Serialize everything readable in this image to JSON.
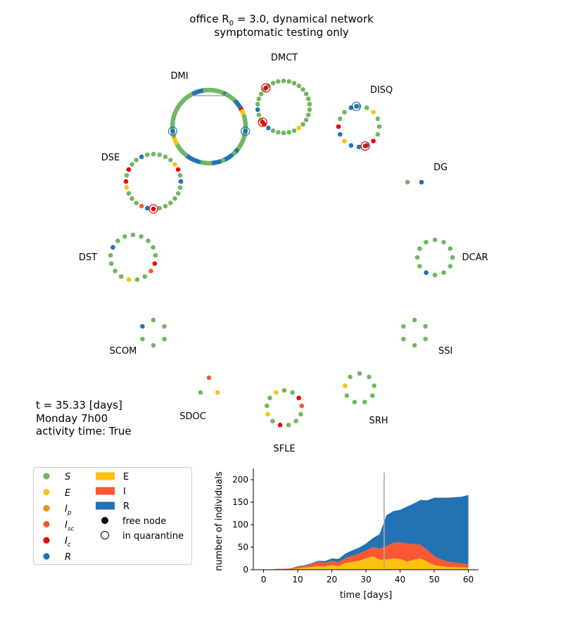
{
  "title": {
    "line1": "office R0 = 3.0, dynamical network",
    "line2": "symptomatic testing only",
    "r0_label": "office R",
    "r0_sub": "0",
    "r0_rest": " = 3.0, dynamical network"
  },
  "status": {
    "time_text": "t = 35.33 [days]",
    "day_text": "Monday 7h00",
    "activity_text": "activity time: True"
  },
  "colors": {
    "S": "#71b662",
    "E": "#fcc00f",
    "Ip": "#f18d12",
    "Isc": "#fb5733",
    "Ic": "#ea0707",
    "R": "#2272b4",
    "grid": "#aaaaaa"
  },
  "network": {
    "groups": [
      {
        "name": "DMI",
        "states": "SSSSSSSSSRSSSSSSRRRRRIEEESSSSSSSSSSSSSSSSSSSRRSSRRRRRSSRRRRRSSSSSSRRRRRRRRSSSSSSSSEEEESSSSSSSSSSSSSSSSSSSSSSSSSSSRRRRRRSS",
        "quarantine": [
          {
            "state": "R",
            "frac": 0.27
          },
          {
            "state": "R",
            "frac": 0.73
          }
        ]
      },
      {
        "name": "DMCT",
        "states": "SSSSSSSSSSSSESSSSSRIcSScRSSSSSSS",
        "quarantine": [
          {
            "state": "Ic",
            "frac": 0.65
          },
          {
            "state": "Ic",
            "frac": 0.88
          }
        ]
      },
      {
        "name": "DISQ",
        "states": "SSESSSIcRRRERISSR",
        "quarantine": [
          {
            "state": "R",
            "frac": 0.98
          },
          {
            "state": "Ic",
            "frac": 0.45
          }
        ]
      },
      {
        "name": "DSE",
        "states": "SSSSEIcScRSSSSSSSRIscSSSEIcSISSRS",
        "quarantine": [
          {
            "state": "Ic",
            "frac": 0.5
          }
        ]
      },
      {
        "name": "DG",
        "states": "SR",
        "quarantine": []
      },
      {
        "name": "DST",
        "states": "SSSSSIcIscSSESSSSRSS",
        "quarantine": []
      },
      {
        "name": "DCAR",
        "states": "SSSSSSSRSSSS",
        "quarantine": []
      },
      {
        "name": "SCOM",
        "states": "SSSSSR",
        "quarantine": []
      },
      {
        "name": "SSI",
        "states": "SSSSSS",
        "quarantine": []
      },
      {
        "name": "SDOC",
        "states": "IscES",
        "quarantine": []
      },
      {
        "name": "SFLE",
        "states": "SSIcIscSSSIcSESSE",
        "quarantine": []
      },
      {
        "name": "SRH",
        "states": "SSSSSSSES",
        "quarantine": []
      }
    ]
  },
  "legend": {
    "states": [
      {
        "key": "S",
        "label": "S",
        "sub": ""
      },
      {
        "key": "E",
        "label": "E",
        "sub": ""
      },
      {
        "key": "Ip",
        "label": "I",
        "sub": "p"
      },
      {
        "key": "Isc",
        "label": "I",
        "sub": "sc"
      },
      {
        "key": "Ic",
        "label": "I",
        "sub": "c"
      },
      {
        "key": "R",
        "label": "R",
        "sub": ""
      }
    ],
    "areas": [
      {
        "key": "E",
        "label": "E"
      },
      {
        "key": "Isc",
        "label": "I"
      },
      {
        "key": "R",
        "label": "R"
      }
    ],
    "markers": [
      {
        "kind": "filled",
        "label": "free node"
      },
      {
        "kind": "open",
        "label": "in quarantine"
      }
    ]
  },
  "chart_data": {
    "type": "area",
    "stacked": true,
    "xlabel": "time [days]",
    "ylabel": "number of individuals",
    "xlim": [
      -3,
      63
    ],
    "ylim": [
      0,
      225
    ],
    "xticks": [
      0,
      10,
      20,
      30,
      40,
      50,
      60
    ],
    "yticks": [
      0,
      50,
      100,
      150,
      200
    ],
    "current_time_marker": 35.33,
    "x": [
      0,
      2,
      4,
      6,
      8,
      10,
      12,
      14,
      16,
      18,
      20,
      22,
      24,
      26,
      28,
      30,
      32,
      34,
      36,
      38,
      40,
      42,
      44,
      46,
      48,
      50,
      52,
      54,
      56,
      58,
      60
    ],
    "series": [
      {
        "name": "E",
        "values": [
          0,
          0,
          1,
          1,
          1,
          3,
          5,
          6,
          8,
          7,
          10,
          8,
          15,
          17,
          20,
          25,
          30,
          22,
          23,
          25,
          24,
          18,
          22,
          25,
          18,
          10,
          8,
          6,
          6,
          5,
          4
        ]
      },
      {
        "name": "I",
        "values": [
          0,
          0,
          1,
          1,
          2,
          4,
          4,
          6,
          10,
          8,
          10,
          9,
          11,
          14,
          16,
          18,
          20,
          25,
          30,
          35,
          37,
          40,
          35,
          30,
          26,
          20,
          15,
          12,
          10,
          9,
          7
        ]
      },
      {
        "name": "R",
        "values": [
          0,
          0,
          0,
          0,
          0,
          1,
          1,
          2,
          2,
          4,
          5,
          7,
          10,
          12,
          13,
          15,
          20,
          32,
          68,
          70,
          72,
          82,
          90,
          100,
          110,
          130,
          137,
          142,
          145,
          148,
          155
        ]
      }
    ]
  }
}
